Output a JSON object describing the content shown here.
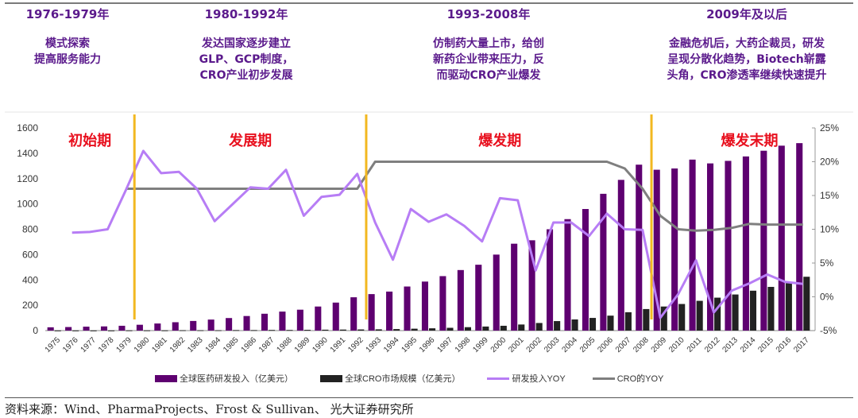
{
  "phases": [
    {
      "years": "1976-1979年",
      "desc": "模式探索\n提高服务能力"
    },
    {
      "years": "1980-1992年",
      "desc": "发达国家逐步建立\nGLP、GCP制度，\nCRO产业初步发展"
    },
    {
      "years": "1993-2008年",
      "desc": "仿制药大量上市，给创\n新药企业带来压力，反\n而驱动CRO产业爆发"
    },
    {
      "years": "2009年及以后",
      "desc": "金融危机后，大药企裁员，研发\n呈现分散化趋势，Biotech崭露\n头角，CRO渗透率继续快速提升"
    }
  ],
  "source": "资料来源：Wind、PharmaProjects、Frost & Sullivan、 光大证券研究所",
  "colors": {
    "rd_bar": "#5e0070",
    "cro_bar": "#222222",
    "rd_yoy": "#b77df5",
    "cro_yoy": "#7f7f7f",
    "divider": "#f2b820",
    "stage_label": "#e8101e",
    "phase_text": "#5b1a8c"
  },
  "chart_data": {
    "type": "bar",
    "title": "",
    "xlabel": "",
    "ylabel": "",
    "ylim": [
      0,
      1600
    ],
    "y_ticks": [
      "0",
      "200",
      "400",
      "600",
      "800",
      "1000",
      "1200",
      "1400",
      "1600"
    ],
    "y2lim": [
      -5,
      25
    ],
    "y2_ticks": [
      "-5%",
      "0%",
      "5%",
      "10%",
      "15%",
      "20%",
      "25%"
    ],
    "grid": false,
    "legend_position": "bottom",
    "stage_labels": [
      {
        "text": "初始期",
        "year": "1977"
      },
      {
        "text": "发展期",
        "year": "1986"
      },
      {
        "text": "爆发期",
        "year": "2000"
      },
      {
        "text": "爆发末期",
        "year": "2014"
      }
    ],
    "dividers": [
      "1979.5",
      "1992.5",
      "2008.5"
    ],
    "categories": [
      "1975",
      "1976",
      "1977",
      "1978",
      "1979",
      "1980",
      "1981",
      "1982",
      "1983",
      "1984",
      "1985",
      "1986",
      "1987",
      "1988",
      "1989",
      "1990",
      "1991",
      "1992",
      "1993",
      "1994",
      "1995",
      "1996",
      "1997",
      "1998",
      "1999",
      "2000",
      "2001",
      "2002",
      "2003",
      "2004",
      "2005",
      "2006",
      "2007",
      "2008",
      "2009",
      "2010",
      "2011",
      "2012",
      "2013",
      "2014",
      "2015",
      "2016",
      "2017"
    ],
    "series": [
      {
        "name": "全球医药研发投入（亿美元）",
        "type": "bar",
        "axis": "left",
        "values": [
          26,
          28,
          31,
          33,
          38,
          46,
          56,
          66,
          76,
          87,
          99,
          115,
          133,
          150,
          165,
          190,
          221,
          263,
          288,
          308,
          348,
          387,
          430,
          478,
          520,
          600,
          686,
          713,
          800,
          880,
          960,
          1080,
          1190,
          1310,
          1270,
          1280,
          1350,
          1320,
          1340,
          1375,
          1420,
          1460,
          1480
        ]
      },
      {
        "name": "全球CRO市场规模（亿美元）",
        "type": "bar",
        "axis": "left",
        "values": [
          1,
          1,
          1,
          1,
          2,
          2,
          2,
          3,
          3,
          3,
          4,
          4,
          5,
          5,
          6,
          7,
          8,
          9,
          10,
          12,
          15,
          18,
          22,
          27,
          32,
          38,
          48,
          60,
          75,
          88,
          100,
          118,
          145,
          170,
          190,
          210,
          235,
          260,
          285,
          315,
          345,
          375,
          425
        ]
      },
      {
        "name": "研发投入YOY",
        "type": "line",
        "axis": "right",
        "values": [
          null,
          9.5,
          9.6,
          10.0,
          15.7,
          21.6,
          18.3,
          18.5,
          16.0,
          11.2,
          13.7,
          16.2,
          16.0,
          18.8,
          12.0,
          14.8,
          15.1,
          18.2,
          11.0,
          5.5,
          13.0,
          11.1,
          12.2,
          10.5,
          8.2,
          14.6,
          14.3,
          3.9,
          11.0,
          11.0,
          9.0,
          12.3,
          10.0,
          9.9,
          -3.1,
          0.4,
          5.4,
          -2.3,
          0.9,
          2.0,
          3.3,
          2.2,
          1.9
        ]
      },
      {
        "name": "CRO的YOY",
        "type": "line",
        "axis": "right",
        "values": [
          null,
          null,
          null,
          null,
          16,
          16,
          16,
          16,
          16,
          16,
          16,
          16,
          16,
          16,
          16,
          16,
          16,
          16,
          20,
          20,
          20,
          20,
          20,
          20,
          20,
          20,
          20,
          20,
          20,
          20,
          20,
          20,
          19,
          16,
          12,
          10,
          9.8,
          9.9,
          10.2,
          10.8,
          10.7,
          10.7,
          10.7
        ]
      }
    ]
  }
}
